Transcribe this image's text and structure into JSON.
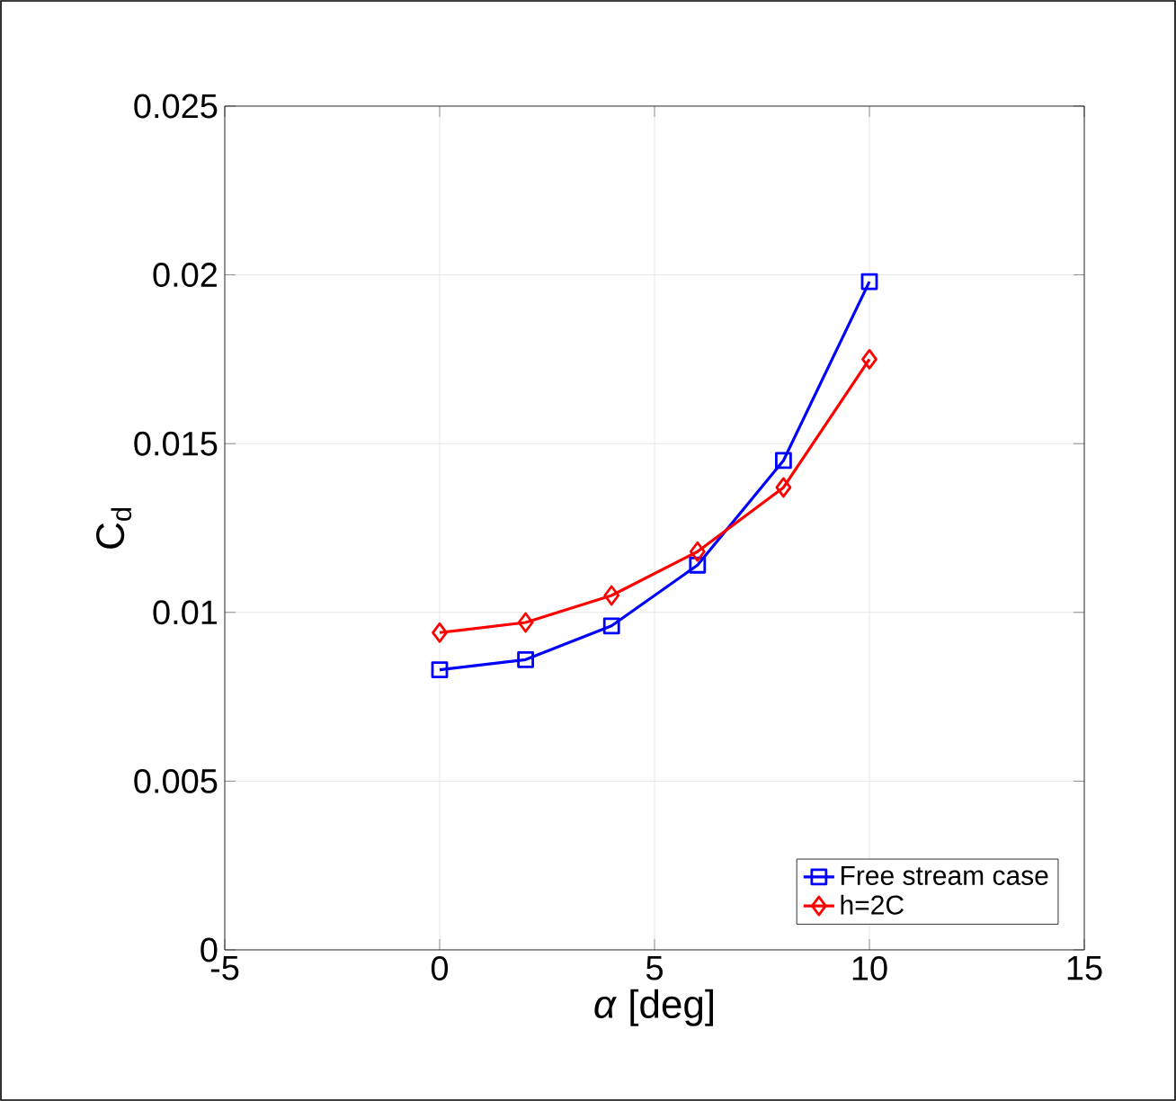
{
  "chart_data": {
    "type": "line",
    "xlabel": "*α* [deg]",
    "ylabel": "C$_{d}$",
    "x": [
      0,
      2,
      4,
      6,
      8,
      10
    ],
    "series": [
      {
        "name": "Free stream case",
        "color": "#0000ff",
        "marker": "square",
        "values": [
          0.0083,
          0.0086,
          0.0096,
          0.0114,
          0.0145,
          0.0198
        ]
      },
      {
        "name": "h=2C",
        "color": "#ff0000",
        "marker": "diamond",
        "values": [
          0.0094,
          0.0097,
          0.0105,
          0.0118,
          0.0137,
          0.0175
        ]
      }
    ],
    "xlim": [
      -5,
      15
    ],
    "ylim": [
      0,
      0.025
    ],
    "xticks": [
      -5,
      0,
      5,
      10,
      15
    ],
    "yticks": [
      0,
      0.005,
      0.01,
      0.015,
      0.02,
      0.025
    ],
    "grid": true,
    "legend": "bottom right",
    "line_style": "solid"
  }
}
